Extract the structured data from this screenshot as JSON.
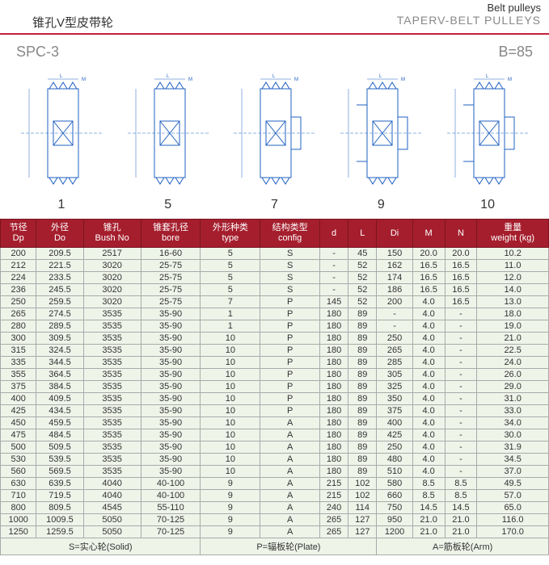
{
  "header": {
    "belt_pulleys": "Belt pulleys",
    "title_cn": "锥孔V型皮带轮",
    "title_en": "TAPERV-BELT PULLEYS"
  },
  "model": {
    "left": "SPC-3",
    "right": "B=85"
  },
  "diagram_labels": [
    "1",
    "5",
    "7",
    "9",
    "10"
  ],
  "diagram_color": "#2060c0",
  "columns": [
    {
      "cn": "节径",
      "en": "Dp"
    },
    {
      "cn": "外径",
      "en": "Do"
    },
    {
      "cn": "锥孔",
      "en": "Bush No"
    },
    {
      "cn": "锥套孔径",
      "en": "bore"
    },
    {
      "cn": "外形种类",
      "en": "type"
    },
    {
      "cn": "结构类型",
      "en": "config"
    },
    {
      "cn": "",
      "en": "d"
    },
    {
      "cn": "",
      "en": "L"
    },
    {
      "cn": "",
      "en": "Di"
    },
    {
      "cn": "",
      "en": "M"
    },
    {
      "cn": "",
      "en": "N"
    },
    {
      "cn": "重量",
      "en": "weight (kg)"
    }
  ],
  "rows": [
    [
      "200",
      "209.5",
      "2517",
      "16-60",
      "5",
      "S",
      "-",
      "45",
      "150",
      "20.0",
      "20.0",
      "10.2"
    ],
    [
      "212",
      "221.5",
      "3020",
      "25-75",
      "5",
      "S",
      "-",
      "52",
      "162",
      "16.5",
      "16.5",
      "11.0"
    ],
    [
      "224",
      "233.5",
      "3020",
      "25-75",
      "5",
      "S",
      "-",
      "52",
      "174",
      "16.5",
      "16.5",
      "12.0"
    ],
    [
      "236",
      "245.5",
      "3020",
      "25-75",
      "5",
      "S",
      "-",
      "52",
      "186",
      "16.5",
      "16.5",
      "14.0"
    ],
    [
      "250",
      "259.5",
      "3020",
      "25-75",
      "7",
      "P",
      "145",
      "52",
      "200",
      "4.0",
      "16.5",
      "13.0"
    ],
    [
      "265",
      "274.5",
      "3535",
      "35-90",
      "1",
      "P",
      "180",
      "89",
      "-",
      "4.0",
      "-",
      "18.0"
    ],
    [
      "280",
      "289.5",
      "3535",
      "35-90",
      "1",
      "P",
      "180",
      "89",
      "-",
      "4.0",
      "-",
      "19.0"
    ],
    [
      "300",
      "309.5",
      "3535",
      "35-90",
      "10",
      "P",
      "180",
      "89",
      "250",
      "4.0",
      "-",
      "21.0"
    ],
    [
      "315",
      "324.5",
      "3535",
      "35-90",
      "10",
      "P",
      "180",
      "89",
      "265",
      "4.0",
      "-",
      "22.5"
    ],
    [
      "335",
      "344.5",
      "3535",
      "35-90",
      "10",
      "P",
      "180",
      "89",
      "285",
      "4.0",
      "-",
      "24.0"
    ],
    [
      "355",
      "364.5",
      "3535",
      "35-90",
      "10",
      "P",
      "180",
      "89",
      "305",
      "4.0",
      "-",
      "26.0"
    ],
    [
      "375",
      "384.5",
      "3535",
      "35-90",
      "10",
      "P",
      "180",
      "89",
      "325",
      "4.0",
      "-",
      "29.0"
    ],
    [
      "400",
      "409.5",
      "3535",
      "35-90",
      "10",
      "P",
      "180",
      "89",
      "350",
      "4.0",
      "-",
      "31.0"
    ],
    [
      "425",
      "434.5",
      "3535",
      "35-90",
      "10",
      "P",
      "180",
      "89",
      "375",
      "4.0",
      "-",
      "33.0"
    ],
    [
      "450",
      "459.5",
      "3535",
      "35-90",
      "10",
      "A",
      "180",
      "89",
      "400",
      "4.0",
      "-",
      "34.0"
    ],
    [
      "475",
      "484.5",
      "3535",
      "35-90",
      "10",
      "A",
      "180",
      "89",
      "425",
      "4.0",
      "-",
      "30.0"
    ],
    [
      "500",
      "509.5",
      "3535",
      "35-90",
      "10",
      "A",
      "180",
      "89",
      "250",
      "4.0",
      "-",
      "31.9"
    ],
    [
      "530",
      "539.5",
      "3535",
      "35-90",
      "10",
      "A",
      "180",
      "89",
      "480",
      "4.0",
      "-",
      "34.5"
    ],
    [
      "560",
      "569.5",
      "3535",
      "35-90",
      "10",
      "A",
      "180",
      "89",
      "510",
      "4.0",
      "-",
      "37.0"
    ],
    [
      "630",
      "639.5",
      "4040",
      "40-100",
      "9",
      "A",
      "215",
      "102",
      "580",
      "8.5",
      "8.5",
      "49.5"
    ],
    [
      "710",
      "719.5",
      "4040",
      "40-100",
      "9",
      "A",
      "215",
      "102",
      "660",
      "8.5",
      "8.5",
      "57.0"
    ],
    [
      "800",
      "809.5",
      "4545",
      "55-110",
      "9",
      "A",
      "240",
      "114",
      "750",
      "14.5",
      "14.5",
      "65.0"
    ],
    [
      "1000",
      "1009.5",
      "5050",
      "70-125",
      "9",
      "A",
      "265",
      "127",
      "950",
      "21.0",
      "21.0",
      "116.0"
    ],
    [
      "1250",
      "1259.5",
      "5050",
      "70-125",
      "9",
      "A",
      "265",
      "127",
      "1200",
      "21.0",
      "21.0",
      "170.0"
    ]
  ],
  "footer": {
    "solid": "S=实心轮(Solid)",
    "plate": "P=辐板轮(Plate)",
    "arm": "A=筋板轮(Arm)"
  },
  "colors": {
    "header_bg": "#a51e2d",
    "cell_bg": "#eff4e9",
    "red_line": "#c41e3a"
  }
}
